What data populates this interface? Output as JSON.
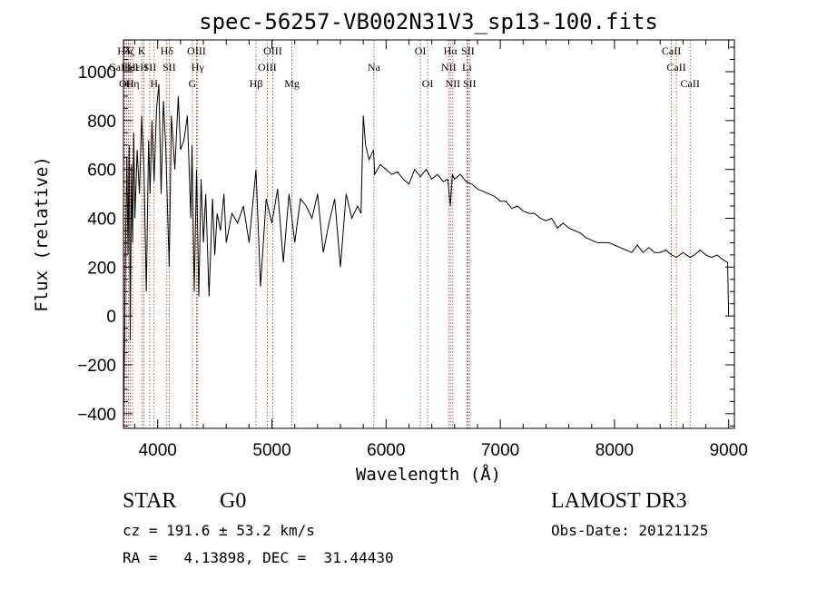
{
  "chart_data": {
    "type": "line",
    "title": "spec-56257-VB002N31V3_sp13-100.fits",
    "xlabel": "Wavelength (Å)",
    "ylabel": "Flux (relative)",
    "xlim": [
      3700,
      9050
    ],
    "ylim": [
      -460,
      1130
    ],
    "xticks": [
      4000,
      5000,
      6000,
      7000,
      8000,
      9000
    ],
    "xtick_labels": [
      "4000",
      "5000",
      "6000",
      "7000",
      "8000",
      "9000"
    ],
    "yticks": [
      -400,
      -200,
      0,
      200,
      400,
      600,
      800,
      1000
    ],
    "ytick_labels": [
      "−400",
      "−200",
      "0",
      "200",
      "400",
      "600",
      "800",
      "1000"
    ],
    "series": [
      {
        "name": "flux",
        "color": "#000000",
        "x": [
          3700,
          3710,
          3720,
          3730,
          3740,
          3750,
          3760,
          3770,
          3780,
          3790,
          3800,
          3820,
          3840,
          3860,
          3880,
          3900,
          3920,
          3933,
          3950,
          3968,
          3990,
          4010,
          4030,
          4050,
          4070,
          4101,
          4120,
          4150,
          4180,
          4200,
          4230,
          4260,
          4290,
          4300,
          4320,
          4340,
          4360,
          4380,
          4400,
          4420,
          4450,
          4480,
          4500,
          4520,
          4550,
          4580,
          4600,
          4650,
          4700,
          4750,
          4800,
          4861,
          4900,
          4950,
          5000,
          5050,
          5100,
          5150,
          5200,
          5250,
          5300,
          5350,
          5400,
          5450,
          5500,
          5550,
          5600,
          5650,
          5700,
          5750,
          5780,
          5800,
          5820,
          5850,
          5890,
          5900,
          5950,
          6000,
          6050,
          6100,
          6150,
          6200,
          6250,
          6300,
          6350,
          6400,
          6450,
          6500,
          6540,
          6563,
          6580,
          6600,
          6650,
          6700,
          6750,
          6800,
          6850,
          6900,
          6950,
          7000,
          7050,
          7100,
          7150,
          7200,
          7250,
          7300,
          7350,
          7400,
          7450,
          7500,
          7550,
          7600,
          7650,
          7700,
          7750,
          7800,
          7850,
          7900,
          7950,
          8000,
          8050,
          8100,
          8150,
          8200,
          8250,
          8300,
          8350,
          8400,
          8450,
          8500,
          8542,
          8600,
          8662,
          8700,
          8750,
          8800,
          8850,
          8900,
          8950,
          8990,
          9000
        ],
        "values": [
          -420,
          -100,
          350,
          650,
          250,
          700,
          -100,
          620,
          300,
          750,
          400,
          680,
          500,
          820,
          600,
          100,
          720,
          500,
          800,
          550,
          850,
          950,
          500,
          880,
          700,
          200,
          820,
          600,
          900,
          680,
          720,
          820,
          400,
          700,
          100,
          600,
          80,
          560,
          300,
          500,
          80,
          480,
          250,
          420,
          350,
          500,
          300,
          420,
          380,
          450,
          300,
          600,
          120,
          480,
          380,
          520,
          220,
          500,
          300,
          480,
          450,
          400,
          500,
          260,
          380,
          480,
          200,
          500,
          400,
          450,
          420,
          820,
          700,
          640,
          680,
          580,
          620,
          600,
          580,
          590,
          560,
          540,
          600,
          570,
          600,
          560,
          580,
          550,
          560,
          450,
          580,
          560,
          580,
          550,
          540,
          520,
          510,
          500,
          490,
          470,
          470,
          440,
          450,
          430,
          420,
          420,
          400,
          390,
          400,
          360,
          380,
          360,
          350,
          340,
          320,
          310,
          300,
          300,
          300,
          290,
          280,
          270,
          260,
          290,
          260,
          280,
          260,
          260,
          270,
          250,
          240,
          260,
          240,
          250,
          270,
          250,
          240,
          250,
          230,
          220,
          0
        ]
      }
    ],
    "spectral_lines": [
      {
        "label": "Hδ",
        "x": 3703,
        "row": 0
      },
      {
        "label": "CaIIHε",
        "x": 3710,
        "row": 1
      },
      {
        "label": "OII",
        "x": 3727,
        "row": 2
      },
      {
        "label": "Hζ",
        "x": 3743,
        "row": 0
      },
      {
        "label": "HeI",
        "x": 3760,
        "row": 1
      },
      {
        "label": "Hη",
        "x": 3780,
        "row": 2
      },
      {
        "label": "K",
        "x": 3860,
        "row": 0
      },
      {
        "label": "H",
        "x": 3880,
        "row": 1
      },
      {
        "label": "SII",
        "x": 3930,
        "row": 1
      },
      {
        "label": "H",
        "x": 3968,
        "row": 2
      },
      {
        "label": "Hδ",
        "x": 4080,
        "row": 0
      },
      {
        "label": "SII",
        "x": 4101,
        "row": 1
      },
      {
        "label": "OIII",
        "x": 4340,
        "row": 0
      },
      {
        "label": "Hγ",
        "x": 4350,
        "row": 1
      },
      {
        "label": "G",
        "x": 4304,
        "row": 2
      },
      {
        "label": "Hβ",
        "x": 4861,
        "row": 2
      },
      {
        "label": "OIII",
        "x": 5007,
        "row": 0
      },
      {
        "label": "OIII",
        "x": 4959,
        "row": 1
      },
      {
        "label": "Mg",
        "x": 5175,
        "row": 2
      },
      {
        "label": "Na",
        "x": 5893,
        "row": 1
      },
      {
        "label": "OI",
        "x": 6300,
        "row": 0
      },
      {
        "label": "OI",
        "x": 6364,
        "row": 2
      },
      {
        "label": "Hα",
        "x": 6563,
        "row": 0
      },
      {
        "label": "NII",
        "x": 6548,
        "row": 1
      },
      {
        "label": "NII",
        "x": 6584,
        "row": 2
      },
      {
        "label": "SII",
        "x": 6716,
        "row": 0
      },
      {
        "label": "Li",
        "x": 6708,
        "row": 1
      },
      {
        "label": "SII",
        "x": 6731,
        "row": 2
      },
      {
        "label": "CaII",
        "x": 8498,
        "row": 0
      },
      {
        "label": "CaII",
        "x": 8542,
        "row": 1
      },
      {
        "label": "CaII",
        "x": 8662,
        "row": 2
      }
    ],
    "line_marker_color": "#b22222"
  },
  "info": {
    "object_class": "STAR",
    "subclass": "G0",
    "survey": "LAMOST DR3",
    "cz": "cz = 191.6 ± 53.2 km/s",
    "obs_date": "Obs-Date: 20121125",
    "coords": "RA =   4.13898, DEC =  31.44430"
  }
}
